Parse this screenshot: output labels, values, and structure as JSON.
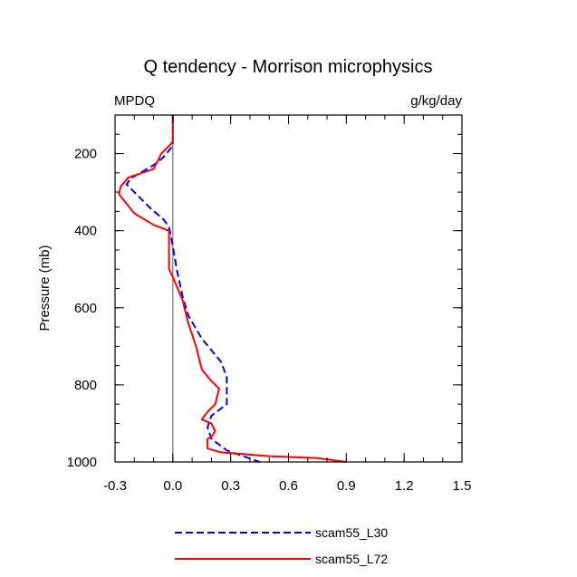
{
  "chart_data": {
    "type": "line",
    "title": "Q tendency - Morrison microphysics",
    "left_label": "MPDQ",
    "right_label": "g/kg/day",
    "ylabel": "Pressure (mb)",
    "xlabel": "",
    "xlim": [
      -0.3,
      1.5
    ],
    "ylim": [
      100,
      1000
    ],
    "y_inverted": true,
    "x_ticks": [
      -0.3,
      0.0,
      0.3,
      0.6,
      0.9,
      1.2,
      1.5
    ],
    "x_tick_labels": [
      "-0.3",
      "0.0",
      "0.3",
      "0.6",
      "0.9",
      "1.2",
      "1.5"
    ],
    "y_ticks": [
      200,
      400,
      600,
      800,
      1000
    ],
    "y_tick_labels": [
      "200",
      "400",
      "600",
      "800",
      "1000"
    ],
    "zero_line": 0.0,
    "series": [
      {
        "name": "scam55_L30",
        "color": "#0000ff",
        "dash": "dashed",
        "points": [
          [
            0.0,
            100
          ],
          [
            0.0,
            180
          ],
          [
            -0.05,
            210
          ],
          [
            -0.1,
            230
          ],
          [
            -0.22,
            265
          ],
          [
            -0.24,
            280
          ],
          [
            -0.2,
            300
          ],
          [
            -0.12,
            340
          ],
          [
            -0.05,
            370
          ],
          [
            -0.02,
            390
          ],
          [
            0.0,
            440
          ],
          [
            0.02,
            500
          ],
          [
            0.05,
            570
          ],
          [
            0.08,
            620
          ],
          [
            0.15,
            680
          ],
          [
            0.25,
            740
          ],
          [
            0.28,
            780
          ],
          [
            0.28,
            850
          ],
          [
            0.2,
            880
          ],
          [
            0.18,
            910
          ],
          [
            0.2,
            940
          ],
          [
            0.28,
            970
          ],
          [
            0.45,
            1000
          ]
        ]
      },
      {
        "name": "scam55_L72",
        "color": "#ff0000",
        "dash": "solid",
        "points": [
          [
            0.0,
            100
          ],
          [
            0.0,
            170
          ],
          [
            -0.02,
            180
          ],
          [
            -0.06,
            200
          ],
          [
            -0.1,
            240
          ],
          [
            -0.23,
            262
          ],
          [
            -0.27,
            285
          ],
          [
            -0.28,
            305
          ],
          [
            -0.24,
            330
          ],
          [
            -0.2,
            355
          ],
          [
            -0.1,
            385
          ],
          [
            -0.02,
            400
          ],
          [
            -0.02,
            500
          ],
          [
            0.0,
            520
          ],
          [
            0.05,
            580
          ],
          [
            0.08,
            640
          ],
          [
            0.12,
            700
          ],
          [
            0.15,
            760
          ],
          [
            0.2,
            790
          ],
          [
            0.24,
            810
          ],
          [
            0.22,
            850
          ],
          [
            0.18,
            870
          ],
          [
            0.15,
            890
          ],
          [
            0.2,
            900
          ],
          [
            0.22,
            920
          ],
          [
            0.2,
            935
          ],
          [
            0.18,
            940
          ],
          [
            0.18,
            965
          ],
          [
            0.25,
            975
          ],
          [
            0.5,
            985
          ],
          [
            0.75,
            990
          ],
          [
            0.9,
            1000
          ]
        ]
      }
    ]
  }
}
